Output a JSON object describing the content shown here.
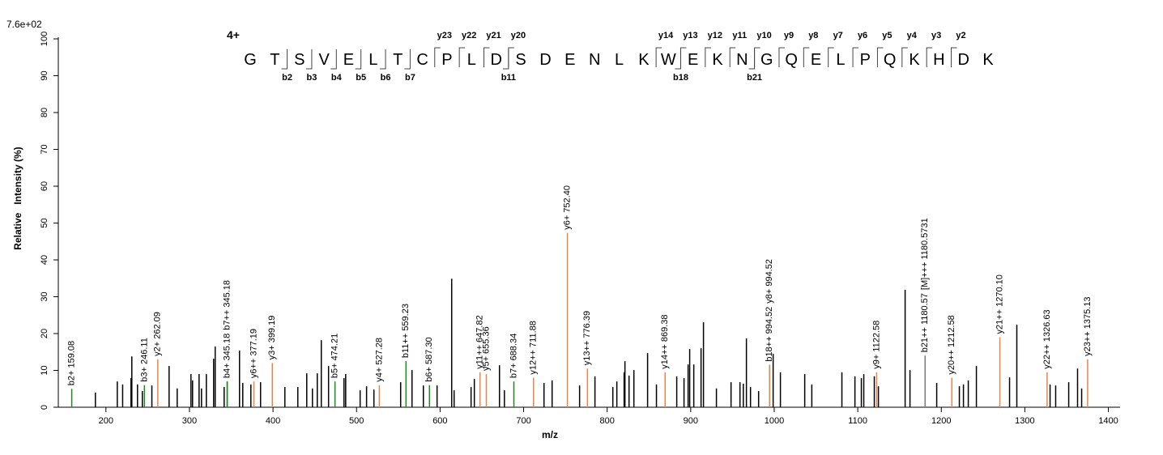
{
  "chart_data": {
    "type": "spectrum",
    "scale_label": "7.6e+02",
    "xlabel": "m/z",
    "ylabel": "Relative   Intensity (%)",
    "xlim": [
      143,
      1414
    ],
    "ylim": [
      0,
      100
    ],
    "xticks": [
      200,
      300,
      400,
      500,
      600,
      700,
      800,
      900,
      1000,
      1100,
      1200,
      1300,
      1400
    ],
    "yticks": [
      0,
      10,
      20,
      30,
      40,
      50,
      60,
      70,
      80,
      90,
      100
    ],
    "peaks": {
      "color": "#000000",
      "x": [
        187.4,
        213.6,
        220,
        230,
        231,
        237.8,
        243.6,
        255,
        275.6,
        285.3,
        301.8,
        303.7,
        311.5,
        314.4,
        320.2,
        328.9,
        330.8,
        341.5,
        359.9,
        363.8,
        373.5,
        385.1,
        414.2,
        429.7,
        440.4,
        447.2,
        453,
        457.8,
        466.5,
        485,
        487,
        504.3,
        512,
        520.8,
        552.8,
        566.4,
        580,
        596.4,
        613.9,
        616.8,
        637.1,
        641,
        671.1,
        677,
        724.4,
        734.1,
        767,
        785.4,
        806.8,
        811.6,
        820.3,
        821.3,
        826.2,
        832,
        848.4,
        859,
        883.3,
        892,
        896.9,
        898.8,
        903.7,
        912.4,
        915.3,
        930.8,
        948.3,
        959,
        963,
        966.7,
        971.6,
        981.3,
        998.7,
        1007.4,
        1036.5,
        1045,
        1081,
        1096.6,
        1104.3,
        1107.2,
        1119.8,
        1124.7,
        1156.7,
        1162.5,
        1194.5,
        1221.6,
        1226.5,
        1232.3,
        1242,
        1281.7,
        1290.4,
        1330.2,
        1336.9,
        1352.5,
        1363.1,
        1368
      ],
      "values": [
        4,
        7,
        6.2,
        7.9,
        13.8,
        6.2,
        4.4,
        5.9,
        11.2,
        5.1,
        9,
        7.3,
        9,
        5.1,
        9,
        13.2,
        16.5,
        5.5,
        15.4,
        6.6,
        6.2,
        6.8,
        5.5,
        5.5,
        9.2,
        5.1,
        9.2,
        18.2,
        11.2,
        7.9,
        9,
        4.6,
        5.7,
        4.8,
        6.8,
        10.1,
        5.9,
        5.9,
        34.9,
        4.6,
        5.5,
        7.7,
        11.4,
        4.6,
        6.6,
        7.3,
        5.9,
        8.4,
        5.5,
        7,
        9.5,
        12.5,
        8.6,
        10.1,
        14.7,
        6.2,
        8.4,
        7.9,
        11.6,
        15.8,
        11.6,
        16,
        23.1,
        5.1,
        6.8,
        6.8,
        6.4,
        18.7,
        5.5,
        4.4,
        14.5,
        9.5,
        9,
        6.2,
        9.5,
        8.4,
        7.9,
        9,
        8.4,
        5.7,
        31.9,
        10.1,
        6.6,
        5.7,
        6.2,
        7.3,
        11.2,
        8.1,
        22.4,
        6.2,
        5.9,
        6.8,
        10.5,
        5.1
      ]
    },
    "annotations": {
      "x": [
        159.08,
        246.11,
        262.09,
        345.18,
        345.18,
        377.19,
        399.19,
        474.21,
        527.28,
        559.23,
        587.3,
        647.82,
        655.36,
        688.34,
        711.88,
        752.4,
        776.39,
        869.38,
        994.52,
        994.52,
        1122.58,
        1180.57,
        1180.5731,
        1212.58,
        1270.1,
        1326.63,
        1375.13
      ],
      "values": [
        5,
        6,
        13,
        7,
        7,
        7,
        12,
        7,
        6,
        12.5,
        6,
        9.5,
        9,
        7,
        8,
        47.3,
        10.5,
        9.5,
        11.5,
        11.5,
        9.5,
        14,
        14,
        8,
        19,
        9.5,
        13
      ],
      "labels": [
        "b2+ 159.08",
        "b3+ 246.11",
        "y2+ 262.09",
        "b4+ 345.18",
        "b7++ 345.18",
        "y6++ 377.19",
        "y3+ 399.19",
        "b5+ 474.21",
        "y4+ 527.28",
        "b11++ 559.23",
        "b6+ 587.30",
        "y11++ 647.82",
        "y5+ 655.36",
        "b7+ 688.34",
        "y12++ 711.88",
        "y6+ 752.40",
        "y13++ 776.39",
        "y14++ 869.38",
        "b18++ 994.52",
        "y8+ 994.52",
        "y9+ 1122.58",
        "b21++ 1180.57",
        "[M]+++ 1180.5731",
        "y20++ 1212.58",
        "y21++ 1270.10",
        "y22++ 1326.63",
        "y23++ 1375.13"
      ],
      "colors": [
        "#1a8a1a",
        "#1a8a1a",
        "#e8854a",
        "#1a8a1a",
        "#1a8a1a",
        "#e8854a",
        "#e8854a",
        "#1a8a1a",
        "#e8854a",
        "#1a8a1a",
        "#1a8a1a",
        "#e8854a",
        "#e8854a",
        "#1a8a1a",
        "#e8854a",
        "#e8854a",
        "#e8854a",
        "#e8854a",
        "#1a8a1a",
        "#e8854a",
        "#e8854a",
        "#1a8a1a",
        "#808080",
        "#e8854a",
        "#e8854a",
        "#e8854a",
        "#e8854a"
      ]
    },
    "peptide": {
      "charge": "4+",
      "charge_color": "#0000b0",
      "sequence": [
        "G",
        "T",
        "S",
        "V",
        "E",
        "L",
        "T",
        "C",
        "P",
        "L",
        "D",
        "S",
        "D",
        "E",
        "N",
        "L",
        "K",
        "W",
        "E",
        "K",
        "N",
        "G",
        "Q",
        "E",
        "L",
        "P",
        "Q",
        "K",
        "H",
        "D",
        "K"
      ],
      "y_ions": [
        "y23",
        "y22",
        "y21",
        "y20",
        "y14",
        "y13",
        "y12",
        "y11",
        "y10",
        "y9",
        "y8",
        "y7",
        "y6",
        "y5",
        "y4",
        "y3",
        "y2"
      ],
      "b_ions": [
        "b2",
        "b3",
        "b4",
        "b5",
        "b6",
        "b7",
        "b11",
        "b18",
        "b21"
      ],
      "y_color": "#e8854a",
      "b_color": "#1a8a1a"
    }
  }
}
